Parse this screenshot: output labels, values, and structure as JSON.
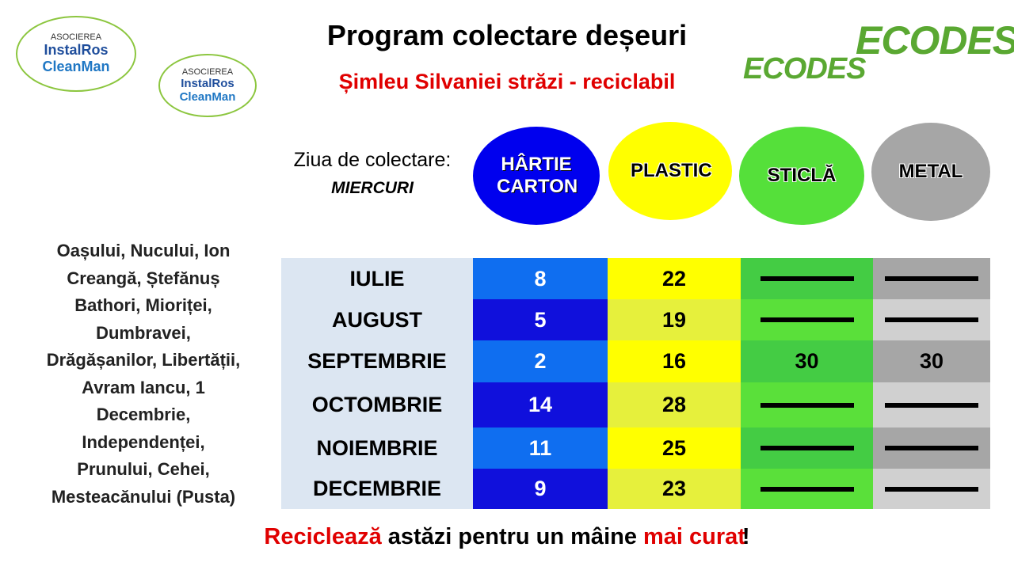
{
  "logos": [
    {
      "top": "ASOCIEREA",
      "middle": "InstalRos",
      "bottom": "CleanMan"
    },
    {
      "top": "ASOCIEREA",
      "middle": "InstalRos",
      "bottom": "CleanMan"
    }
  ],
  "ecodes": [
    "ECODES",
    "ECODES"
  ],
  "header": {
    "title": "Program colectare deșeuri",
    "subtitle": "Șimleu Silvaniei străzi - reciclabil"
  },
  "collection": {
    "label": "Ziua de colectare:",
    "day": "MIERCURI"
  },
  "categories": [
    {
      "name": "HÂRTIE CARTON",
      "color": "#0000ee"
    },
    {
      "name": "PLASTIC",
      "color": "#ffff00"
    },
    {
      "name": "STICLĂ",
      "color": "#55e03a"
    },
    {
      "name": "METAL",
      "color": "#a6a6a6"
    }
  ],
  "streets": [
    "Oașului, Nucului, Ion",
    "Creangă, Ștefănuș",
    "Bathori, Mioriței,",
    "Dumbravei,",
    "Drăgășanilor, Libertății,",
    "Avram Iancu, 1",
    "Decembrie,",
    "Independenței,",
    "Prunului, Cehei,",
    "Mesteacănului (Pusta)"
  ],
  "table": {
    "rows": [
      {
        "month": "IULIE",
        "cells": [
          8,
          22,
          null,
          null
        ]
      },
      {
        "month": "AUGUST",
        "cells": [
          5,
          19,
          null,
          null
        ]
      },
      {
        "month": "SEPTEMBRIE",
        "cells": [
          2,
          16,
          30,
          30
        ]
      },
      {
        "month": "OCTOMBRIE",
        "cells": [
          14,
          28,
          null,
          null
        ]
      },
      {
        "month": "NOIEMBRIE",
        "cells": [
          11,
          25,
          null,
          null
        ]
      },
      {
        "month": "DECEMBRIE",
        "cells": [
          9,
          23,
          null,
          null
        ]
      }
    ]
  },
  "footer": [
    {
      "text": "Reciclează",
      "highlight": true
    },
    {
      "text": "astăzi pentru un mâine",
      "highlight": false
    },
    {
      "text": "mai curat",
      "highlight": true
    },
    {
      "text": "!",
      "highlight": false
    }
  ]
}
